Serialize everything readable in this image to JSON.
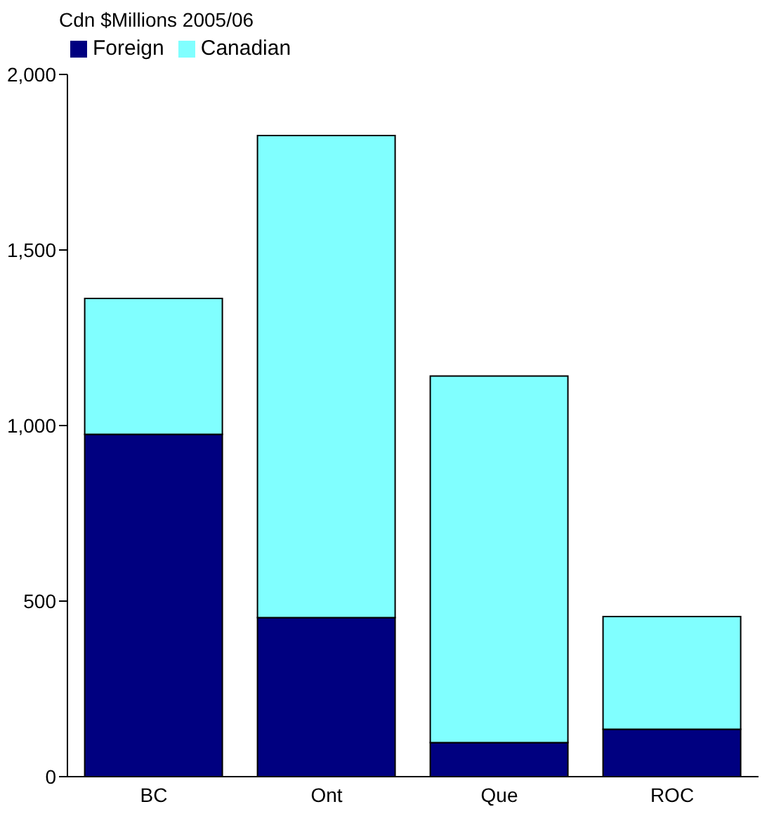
{
  "chart_data": {
    "type": "bar",
    "ylabel": "Cdn $Millions 2005/06",
    "categories": [
      "BC",
      "Ont",
      "Que",
      "ROC"
    ],
    "stacked": true,
    "series": [
      {
        "name": "Foreign",
        "color": "#000080",
        "values": [
          975,
          453,
          97,
          135
        ]
      },
      {
        "name": "Canadian",
        "color": "#80ffff",
        "values": [
          387,
          1373,
          1044,
          321
        ]
      }
    ],
    "ylim": [
      0,
      2000
    ],
    "yticks": [
      0,
      {
        "value": 500,
        "label": "500"
      },
      {
        "value": 1000,
        "label": "1,000"
      },
      {
        "value": 1500,
        "label": "1,500"
      },
      {
        "value": 2000,
        "label": "2,000"
      }
    ],
    "grid": false,
    "legend": "top left"
  }
}
